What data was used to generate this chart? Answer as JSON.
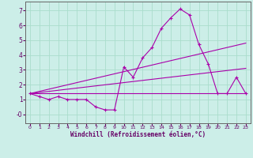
{
  "background_color": "#cceee8",
  "grid_color": "#aaddcc",
  "line_color": "#aa00aa",
  "xlabel": "Windchill (Refroidissement éolien,°C)",
  "xlim": [
    -0.5,
    23.5
  ],
  "ylim": [
    -0.6,
    7.6
  ],
  "yticks": [
    7,
    6,
    5,
    4,
    3,
    2,
    1,
    0
  ],
  "xticks": [
    0,
    1,
    2,
    3,
    4,
    5,
    6,
    7,
    8,
    9,
    10,
    11,
    12,
    13,
    14,
    15,
    16,
    17,
    18,
    19,
    20,
    21,
    22,
    23
  ],
  "series1_x": [
    0,
    1,
    2,
    3,
    4,
    5,
    6,
    7,
    8,
    9,
    10,
    11,
    12,
    13,
    14,
    15,
    16,
    17,
    18,
    19,
    20,
    21,
    22,
    23
  ],
  "series1_y": [
    1.4,
    1.2,
    1.0,
    1.2,
    1.0,
    1.0,
    1.0,
    0.5,
    0.3,
    0.3,
    3.2,
    2.5,
    3.8,
    4.5,
    5.8,
    6.5,
    7.1,
    6.7,
    4.7,
    3.4,
    1.4,
    1.4,
    2.5,
    1.4
  ],
  "series2_x": [
    0,
    23
  ],
  "series2_y": [
    1.4,
    1.4
  ],
  "series3_x": [
    0,
    23
  ],
  "series3_y": [
    1.4,
    3.1
  ],
  "series4_x": [
    0,
    23
  ],
  "series4_y": [
    1.4,
    4.8
  ]
}
